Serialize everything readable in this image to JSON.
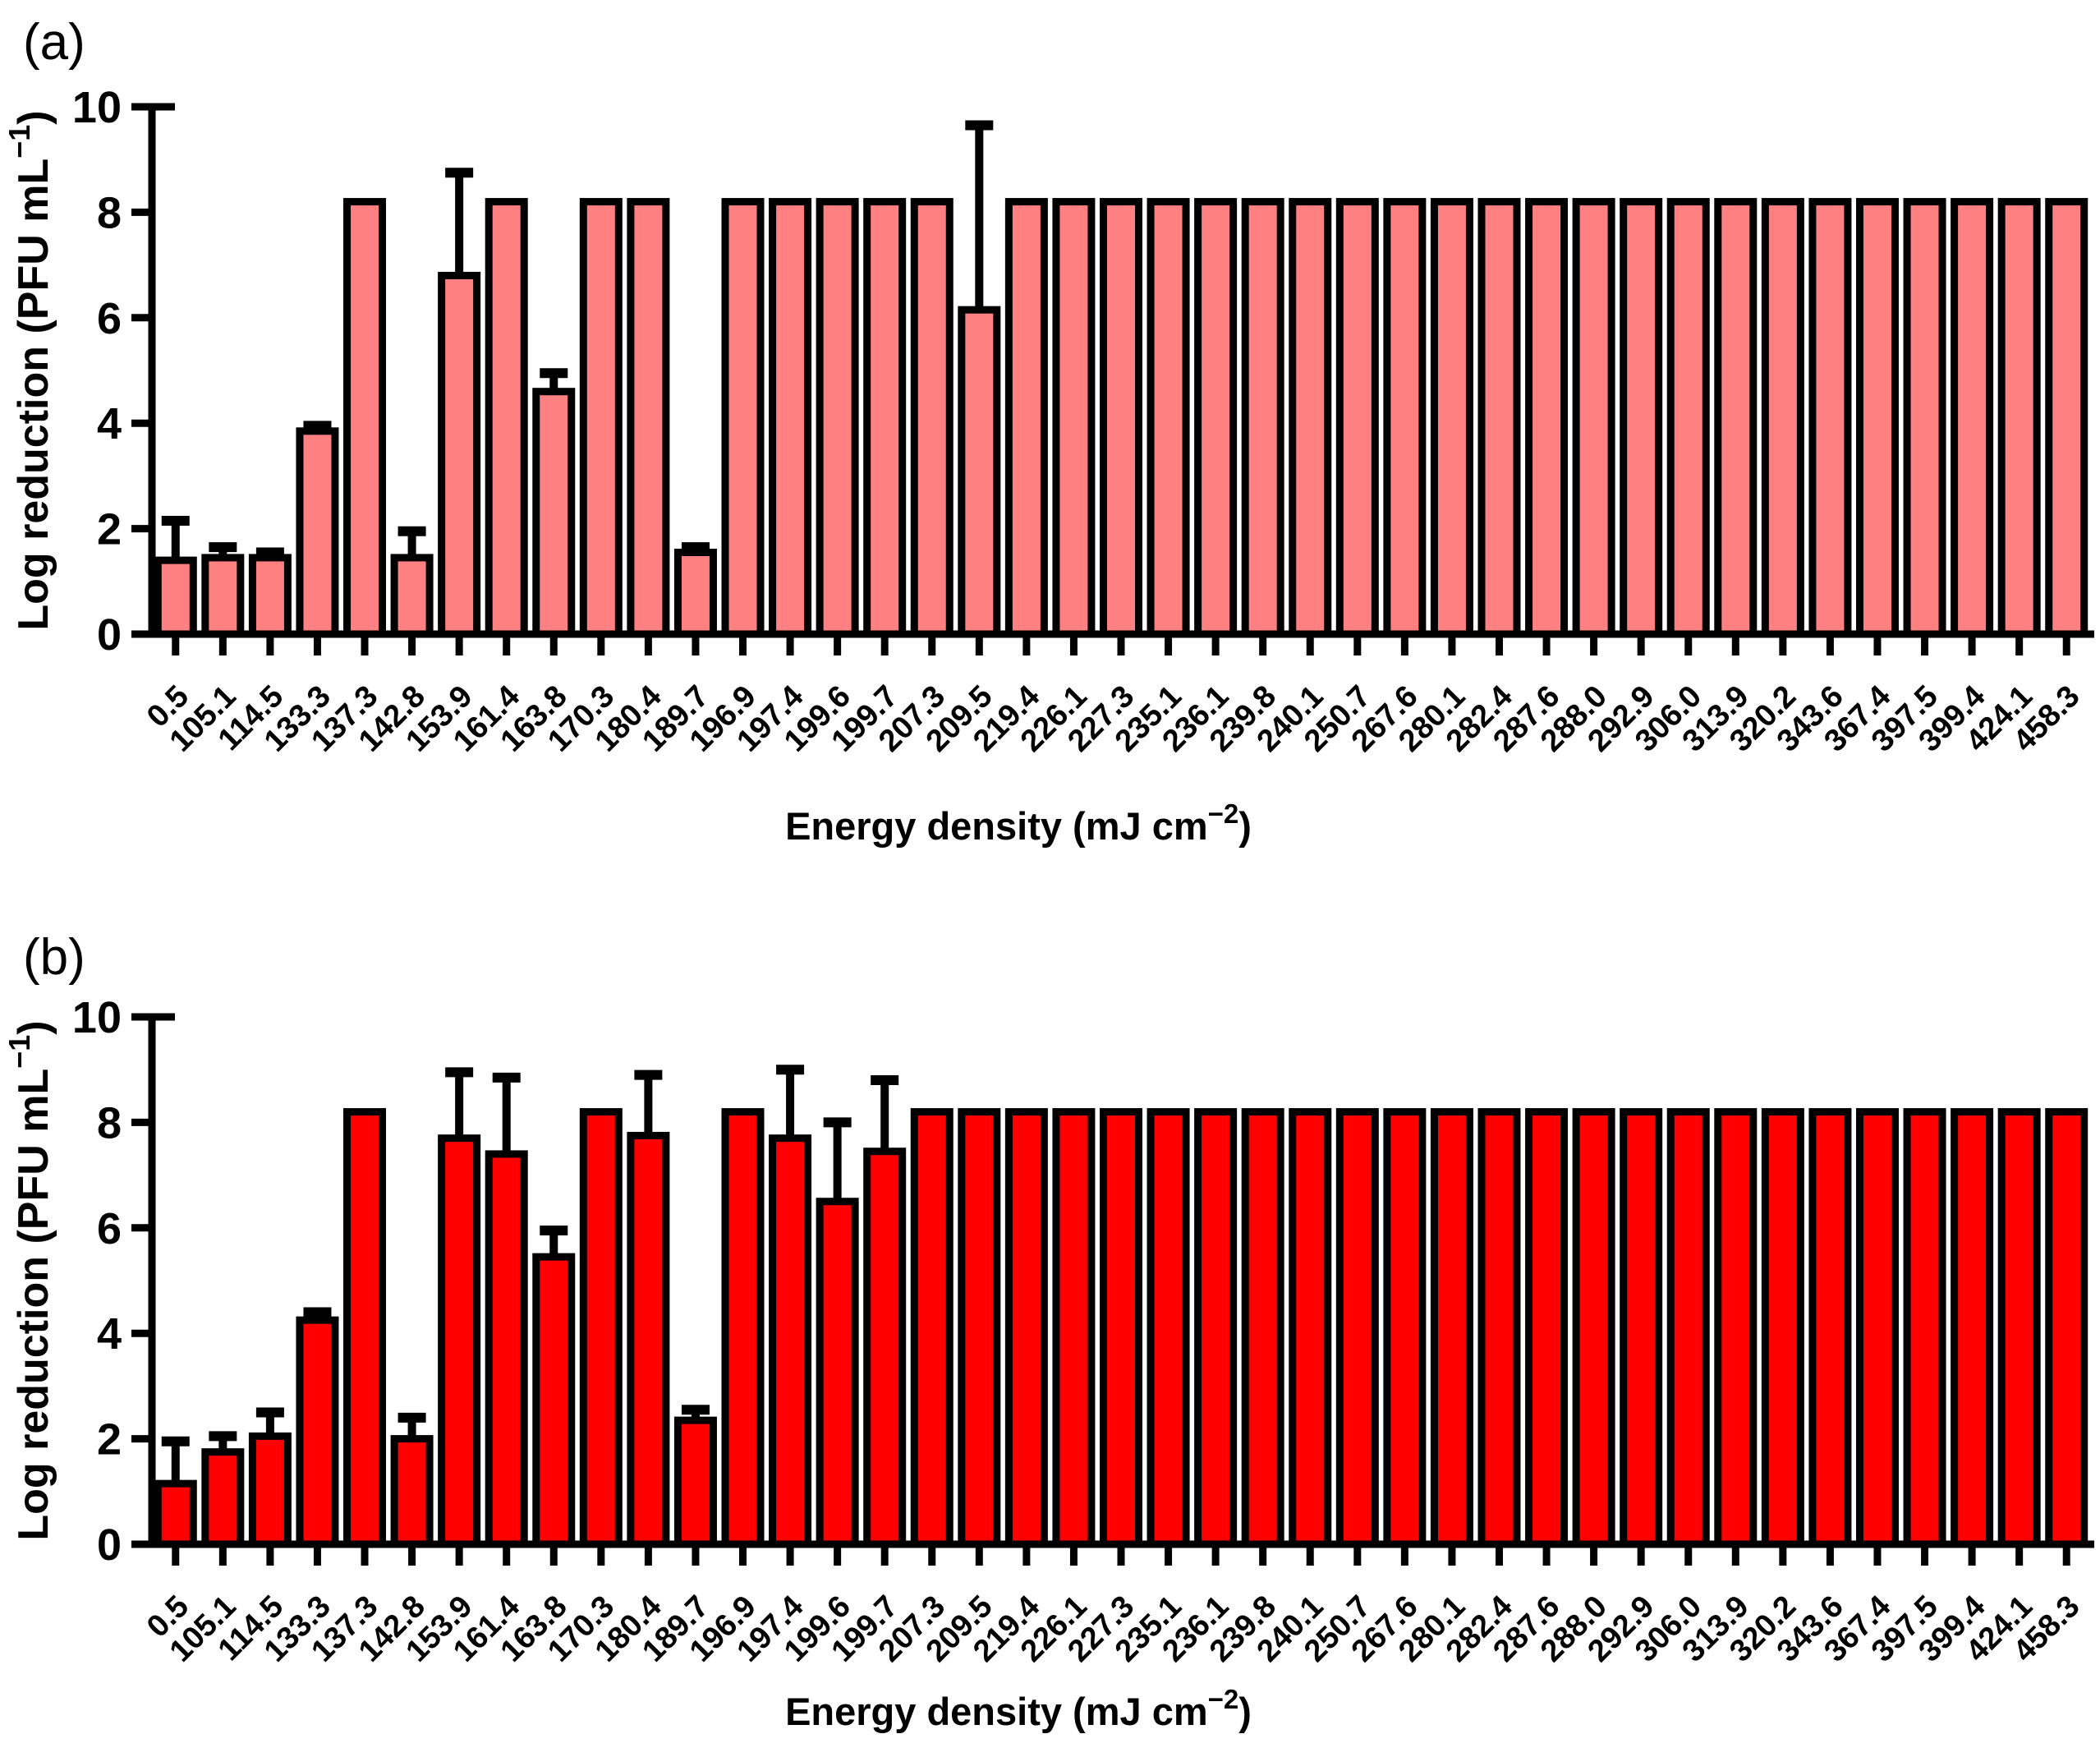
{
  "figure_title": "",
  "colors": {
    "background": "#FFFFFF",
    "axis": "#000000",
    "bar_fill_panel_a": "#FF8080",
    "bar_fill_panel_b": "#FF0000",
    "bar_outline": "#000000",
    "error_bar": "#000000"
  },
  "chart_data": [
    {
      "type": "bar",
      "panel_label": "(a)",
      "bar_color": "#FF8080",
      "xlabel": {
        "main": "Energy density (mJ cm",
        "sup": "−2",
        "end": ")"
      },
      "ylabel": {
        "main": "Log reduction (PFU mL",
        "sup": "−1",
        "end": ")"
      },
      "ylim": [
        0,
        10
      ],
      "yticks": [
        0,
        2,
        4,
        6,
        8,
        10
      ],
      "grid": false,
      "legend": "none",
      "error_bars": "upper_only",
      "categories": [
        "0.5",
        "105.1",
        "114.5",
        "133.3",
        "137.3",
        "142.8",
        "153.9",
        "161.4",
        "163.8",
        "170.3",
        "180.4",
        "189.7",
        "196.9",
        "197.4",
        "199.6",
        "199.7",
        "207.3",
        "209.5",
        "219.4",
        "226.1",
        "227.3",
        "235.1",
        "236.1",
        "239.8",
        "240.1",
        "250.7",
        "267.6",
        "280.1",
        "282.4",
        "287.6",
        "288.0",
        "292.9",
        "306.0",
        "313.9",
        "320.2",
        "343.6",
        "367.4",
        "397.5",
        "399.4",
        "424.1",
        "458.3"
      ],
      "values": [
        1.4,
        1.45,
        1.45,
        3.85,
        8.2,
        1.45,
        6.8,
        8.2,
        4.6,
        8.2,
        8.2,
        1.55,
        8.2,
        8.2,
        8.2,
        8.2,
        8.2,
        6.15,
        8.2,
        8.2,
        8.2,
        8.2,
        8.2,
        8.2,
        8.2,
        8.2,
        8.2,
        8.2,
        8.2,
        8.2,
        8.2,
        8.2,
        8.2,
        8.2,
        8.2,
        8.2,
        8.2,
        8.2,
        8.2,
        8.2,
        8.2
      ],
      "errors": [
        0.75,
        0.2,
        0.1,
        0.1,
        0,
        0.5,
        1.95,
        0,
        0.35,
        0,
        0,
        0.1,
        0,
        0,
        0,
        0,
        0,
        3.5,
        0,
        0,
        0,
        0,
        0,
        0,
        0,
        0,
        0,
        0,
        0,
        0,
        0,
        0,
        0,
        0,
        0,
        0,
        0,
        0,
        0,
        0,
        0
      ]
    },
    {
      "type": "bar",
      "panel_label": "(b)",
      "bar_color": "#FF0000",
      "xlabel": {
        "main": "Energy density (mJ cm",
        "sup": "−2",
        "end": ")"
      },
      "ylabel": {
        "main": "Log reduction (PFU mL",
        "sup": "−1",
        "end": ")"
      },
      "ylim": [
        0,
        10
      ],
      "yticks": [
        0,
        2,
        4,
        6,
        8,
        10
      ],
      "grid": false,
      "legend": "none",
      "error_bars": "upper_only",
      "categories": [
        "0.5",
        "105.1",
        "114.5",
        "133.3",
        "137.3",
        "142.8",
        "153.9",
        "161.4",
        "163.8",
        "170.3",
        "180.4",
        "189.7",
        "196.9",
        "197.4",
        "199.6",
        "199.7",
        "207.3",
        "209.5",
        "219.4",
        "226.1",
        "227.3",
        "235.1",
        "236.1",
        "239.8",
        "240.1",
        "250.7",
        "267.6",
        "280.1",
        "282.4",
        "287.6",
        "288.0",
        "292.9",
        "306.0",
        "313.9",
        "320.2",
        "343.6",
        "367.4",
        "397.5",
        "399.4",
        "424.1",
        "458.3"
      ],
      "values": [
        1.15,
        1.75,
        2.05,
        4.25,
        8.2,
        2.0,
        7.7,
        7.4,
        5.45,
        8.2,
        7.75,
        2.35,
        8.2,
        7.7,
        6.5,
        7.45,
        8.2,
        8.2,
        8.2,
        8.2,
        8.2,
        8.2,
        8.2,
        8.2,
        8.2,
        8.2,
        8.2,
        8.2,
        8.2,
        8.2,
        8.2,
        8.2,
        8.2,
        8.2,
        8.2,
        8.2,
        8.2,
        8.2,
        8.2,
        8.2,
        8.2
      ],
      "errors": [
        0.8,
        0.3,
        0.45,
        0.15,
        0,
        0.4,
        1.25,
        1.45,
        0.5,
        0,
        1.15,
        0.2,
        0,
        1.3,
        1.5,
        1.35,
        0,
        0,
        0,
        0,
        0,
        0,
        0,
        0,
        0,
        0,
        0,
        0,
        0,
        0,
        0,
        0,
        0,
        0,
        0,
        0,
        0,
        0,
        0,
        0,
        0
      ]
    }
  ]
}
